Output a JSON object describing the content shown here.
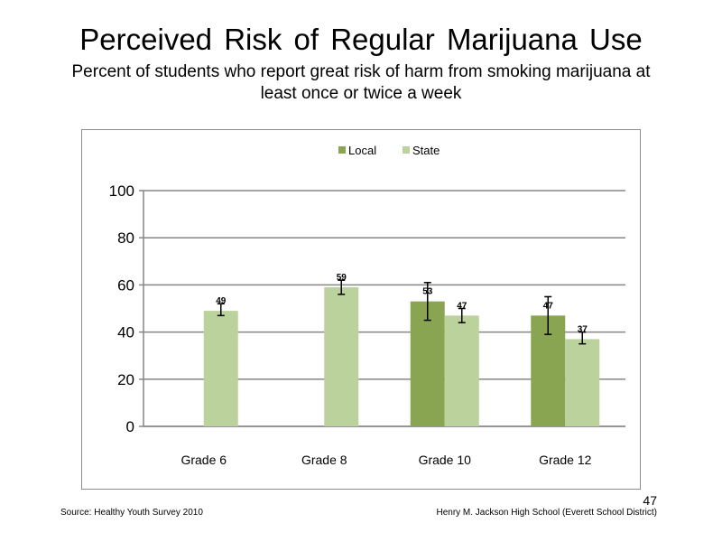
{
  "slide": {
    "title": "Perceived Risk of Regular Marijuana Use",
    "subtitle": "Percent of students who report great risk of harm from smoking marijuana at least once or twice a week",
    "source": "Source: Healthy Youth Survey 2010",
    "school": "Henry M. Jackson High School (Everett School District)",
    "page_number": "47"
  },
  "chart_data": {
    "type": "bar",
    "categories": [
      "Grade 6",
      "Grade 8",
      "Grade 10",
      "Grade 12"
    ],
    "series": [
      {
        "name": "Local",
        "color": "#8aa552",
        "values": [
          null,
          null,
          53,
          47
        ],
        "error_low": [
          null,
          null,
          45,
          39
        ],
        "error_high": [
          null,
          null,
          61,
          55
        ]
      },
      {
        "name": "State",
        "color": "#bcd29c",
        "values": [
          49,
          59,
          47,
          37
        ],
        "error_low": [
          47,
          56,
          44,
          35
        ],
        "error_high": [
          52,
          62,
          50,
          40
        ]
      }
    ],
    "ylim": [
      0,
      100
    ],
    "yticks": [
      0,
      20,
      40,
      60,
      80,
      100
    ],
    "grid": true,
    "legend_position": "top-center",
    "title": "",
    "xlabel": "",
    "ylabel": ""
  }
}
